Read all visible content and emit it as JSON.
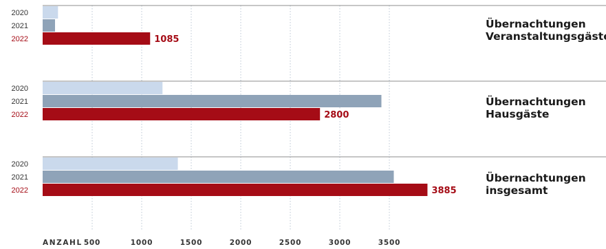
{
  "chart_data": {
    "type": "bar",
    "orientation": "horizontal",
    "grid": "vertical-dotted",
    "xlim": [
      0,
      3900
    ],
    "x_axis": {
      "label": "ANZAHL",
      "ticks": [
        500,
        1000,
        1500,
        2000,
        2500,
        3000,
        3500
      ]
    },
    "series_labels": [
      "2020",
      "2021",
      "2022"
    ],
    "groups": [
      {
        "title": [
          "Übernachtungen",
          "Veranstaltungsgäste"
        ],
        "values": [
          155,
          125,
          1085
        ],
        "label": "1085"
      },
      {
        "title": [
          "Übernachtungen",
          "Hausgäste"
        ],
        "values": [
          1210,
          3420,
          2800
        ],
        "label": "2800"
      },
      {
        "title": [
          "Übernachtungen",
          "insgesamt"
        ],
        "values": [
          1365,
          3545,
          3885
        ],
        "label": "3885"
      }
    ],
    "colors": {
      "2020": "#cad9ec",
      "2021": "#8fa3b8",
      "2022": "#a50c16",
      "separator": "#8c8c8c",
      "grid": "#b9c6d3",
      "text": "#333333"
    }
  }
}
